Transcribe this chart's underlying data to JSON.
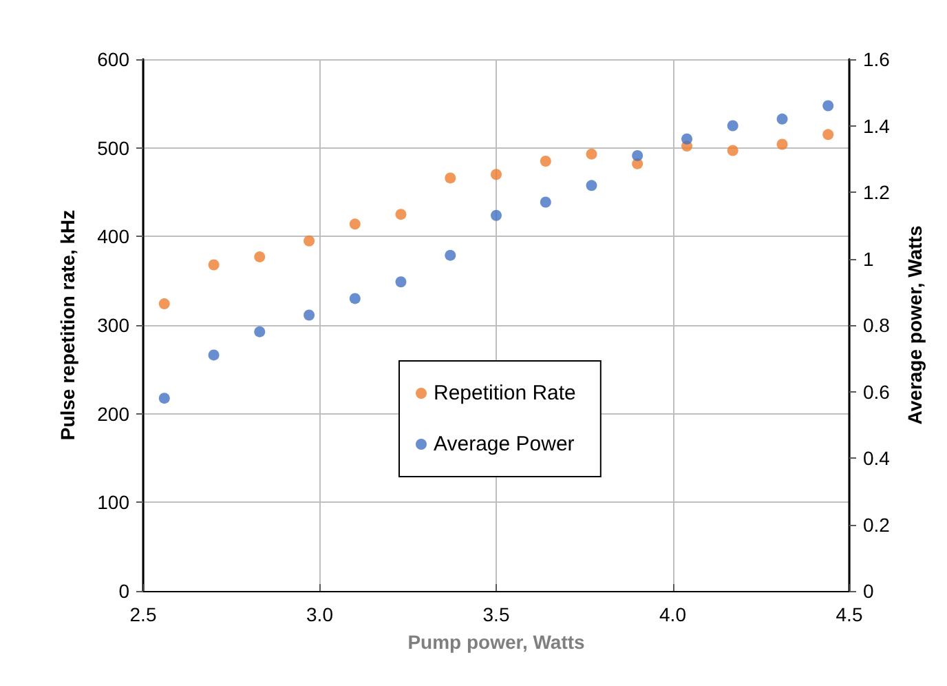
{
  "chart_data": {
    "type": "scatter",
    "xlabel": "Pump power, Watts",
    "ylabel": "Pulse repetition rate, kHz",
    "y2label": "Average power, Watts",
    "x": [
      2.56,
      2.7,
      2.83,
      2.97,
      3.1,
      3.23,
      3.37,
      3.5,
      3.64,
      3.77,
      3.9,
      4.04,
      4.17,
      4.31,
      4.44
    ],
    "series": [
      {
        "name": "Repetition Rate",
        "color": "#ed7d31",
        "values": [
          324,
          368,
          377,
          395,
          414,
          425,
          466,
          470,
          485,
          493,
          482,
          502,
          497,
          504,
          515
        ]
      },
      {
        "name": "Average Power",
        "color": "#4472c4",
        "axis": "y2",
        "values": [
          0.58,
          0.71,
          0.78,
          0.83,
          0.88,
          0.93,
          1.01,
          1.13,
          1.17,
          1.22,
          1.31,
          1.36,
          1.4,
          1.42,
          1.46
        ]
      }
    ],
    "xlim": [
      2.5,
      4.5
    ],
    "xticks": [
      {
        "value": 2.5,
        "label": "2.5"
      },
      {
        "value": 3,
        "label": "3.0"
      },
      {
        "value": 3.5,
        "label": "3.5"
      },
      {
        "value": 4,
        "label": "4.0"
      },
      {
        "value": 4.5,
        "label": "4.5"
      }
    ],
    "ylim": [
      0,
      600
    ],
    "yticks": [
      0,
      100,
      200,
      300,
      400,
      500,
      600
    ],
    "y2lim": [
      0,
      1.6
    ],
    "y2ticks": [
      0,
      0.2,
      0.4,
      0.6,
      0.8,
      1,
      1.2,
      1.4,
      1.6
    ],
    "grid": true,
    "legend": "bottom",
    "marker": "circle"
  }
}
